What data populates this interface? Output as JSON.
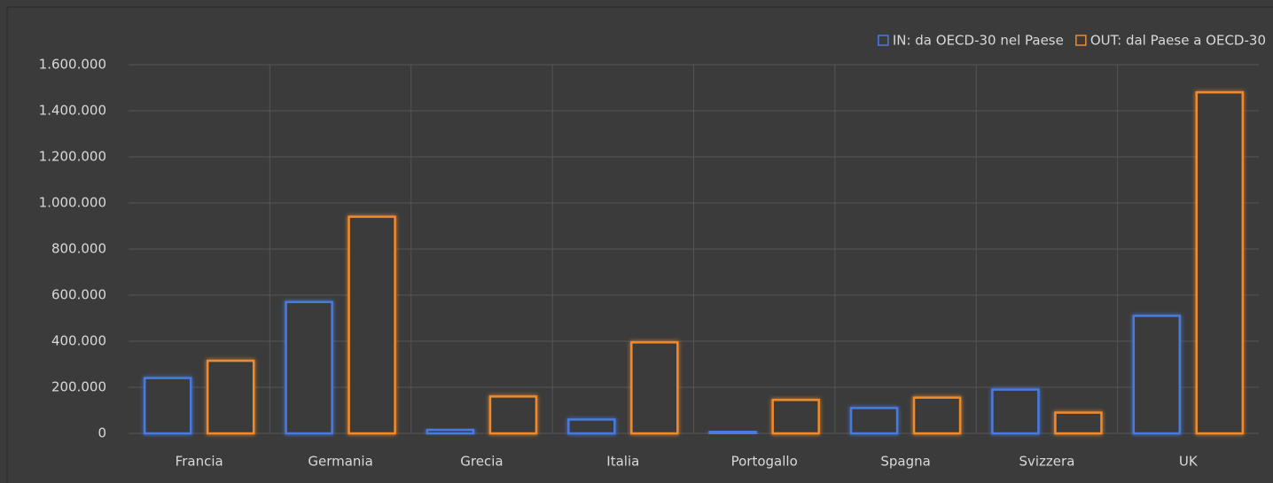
{
  "chart_data": {
    "type": "bar",
    "categories": [
      "Francia",
      "Germania",
      "Grecia",
      "Italia",
      "Portogallo",
      "Spagna",
      "Svizzera",
      "UK"
    ],
    "series": [
      {
        "name": "IN: da OECD-30 nel Paese",
        "color": "#4a7ae0",
        "values": [
          240000,
          570000,
          15000,
          60000,
          8000,
          110000,
          190000,
          510000
        ]
      },
      {
        "name": "OUT: dal Paese a OECD-30",
        "color": "#f08a2c",
        "values": [
          315000,
          940000,
          160000,
          395000,
          145000,
          155000,
          90000,
          1480000
        ]
      }
    ],
    "ylim": [
      0,
      1600000
    ],
    "yticks": [
      0,
      {
        "value": 200000,
        "label": "200.000"
      },
      {
        "value": 400000,
        "label": "400.000"
      },
      {
        "value": 600000,
        "label": "600.000"
      },
      {
        "value": 800000,
        "label": "800.000"
      },
      {
        "value": 1000000,
        "label": "1.000.000"
      },
      {
        "value": 1200000,
        "label": "1.200.000"
      },
      {
        "value": 1400000,
        "label": "1.400.000"
      },
      {
        "value": 1600000,
        "label": "1.600.000"
      }
    ],
    "grid": true,
    "legend": "top-right"
  }
}
